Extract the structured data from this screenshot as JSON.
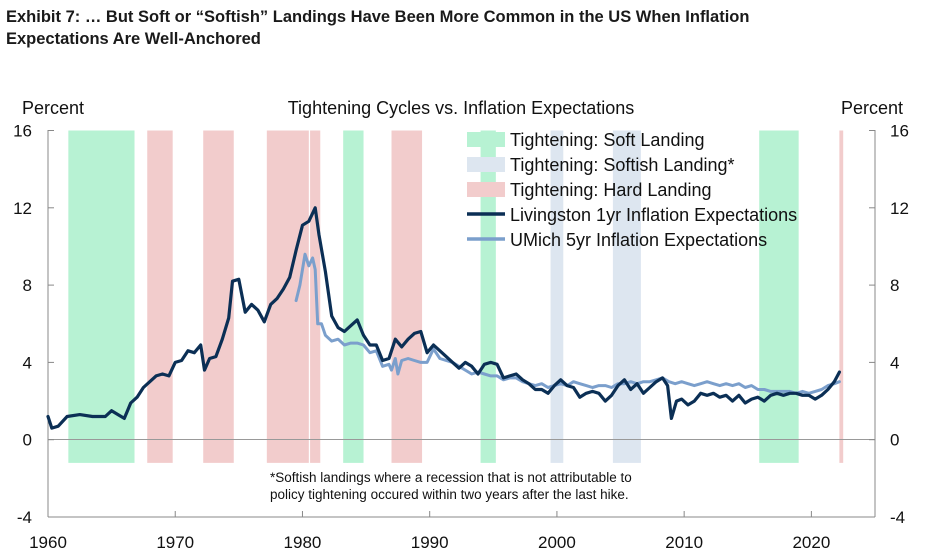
{
  "exhibit": {
    "title_line1": "Exhibit 7: … But Soft or “Softish” Landings Have Been More Common in the US When Inflation",
    "title_line2": "Expectations Are Well-Anchored"
  },
  "chart_data": {
    "type": "line",
    "title": "Tightening Cycles vs. Inflation Expectations",
    "ylabel_left": "Percent",
    "ylabel_right": "Percent",
    "xlim": [
      1960,
      2025
    ],
    "ylim": [
      -4,
      16
    ],
    "x_ticks": [
      "1960",
      "1970",
      "1980",
      "1990",
      "2000",
      "2010",
      "2020"
    ],
    "y_ticks": [
      "16",
      "12",
      "8",
      "4",
      "0",
      "-4"
    ],
    "grid": false,
    "legend_position": "top-right",
    "footnote_line1": "*Softish landings where a recession that is not attributable to",
    "footnote_line2": "policy tightening occured within two years after the last hike.",
    "shaded_categories": [
      {
        "name": "Tightening: Soft Landing",
        "color": "#b7f2d3"
      },
      {
        "name": "Tightening: Softish Landing*",
        "color": "#dde6f0"
      },
      {
        "name": "Tightening: Hard Landing",
        "color": "#f2cccc"
      }
    ],
    "regions": [
      {
        "start": 1961.6,
        "end": 1966.8,
        "kind": 0
      },
      {
        "start": 1967.8,
        "end": 1969.8,
        "kind": 2
      },
      {
        "start": 1972.2,
        "end": 1974.6,
        "kind": 2
      },
      {
        "start": 1977.2,
        "end": 1980.5,
        "kind": 2
      },
      {
        "start": 1980.6,
        "end": 1981.4,
        "kind": 2
      },
      {
        "start": 1983.2,
        "end": 1984.8,
        "kind": 0
      },
      {
        "start": 1987.0,
        "end": 1989.4,
        "kind": 2
      },
      {
        "start": 1994.0,
        "end": 1995.2,
        "kind": 0
      },
      {
        "start": 1999.5,
        "end": 2000.5,
        "kind": 1
      },
      {
        "start": 2004.4,
        "end": 2006.6,
        "kind": 1
      },
      {
        "start": 2015.9,
        "end": 2019.0,
        "kind": 0
      },
      {
        "start": 2022.2,
        "end": 2022.5,
        "kind": 2
      }
    ],
    "series": [
      {
        "name": "Livingston 1yr Inflation Expectations",
        "color": "#0b2f55",
        "points": [
          [
            1960,
            1.2
          ],
          [
            1960.3,
            0.6
          ],
          [
            1960.8,
            0.7
          ],
          [
            1961.5,
            1.2
          ],
          [
            1962.5,
            1.3
          ],
          [
            1963.5,
            1.2
          ],
          [
            1964.5,
            1.2
          ],
          [
            1965,
            1.5
          ],
          [
            1965.5,
            1.3
          ],
          [
            1966,
            1.1
          ],
          [
            1966.5,
            1.9
          ],
          [
            1967,
            2.2
          ],
          [
            1967.5,
            2.7
          ],
          [
            1968,
            3.0
          ],
          [
            1968.5,
            3.3
          ],
          [
            1969,
            3.4
          ],
          [
            1969.5,
            3.3
          ],
          [
            1970,
            4.0
          ],
          [
            1970.5,
            4.1
          ],
          [
            1971,
            4.6
          ],
          [
            1971.5,
            4.5
          ],
          [
            1972,
            4.9
          ],
          [
            1972.3,
            3.6
          ],
          [
            1972.7,
            4.2
          ],
          [
            1973.2,
            4.3
          ],
          [
            1973.7,
            5.2
          ],
          [
            1974.2,
            6.3
          ],
          [
            1974.5,
            8.2
          ],
          [
            1975,
            8.3
          ],
          [
            1975.5,
            6.6
          ],
          [
            1976,
            7.0
          ],
          [
            1976.5,
            6.7
          ],
          [
            1977,
            6.1
          ],
          [
            1977.5,
            7.0
          ],
          [
            1978,
            7.3
          ],
          [
            1978.5,
            7.8
          ],
          [
            1979,
            8.4
          ],
          [
            1979.5,
            9.8
          ],
          [
            1980,
            11.1
          ],
          [
            1980.5,
            11.3
          ],
          [
            1981,
            12.0
          ],
          [
            1981.3,
            10.6
          ],
          [
            1981.8,
            8.7
          ],
          [
            1982.3,
            6.4
          ],
          [
            1982.8,
            5.8
          ],
          [
            1983.3,
            5.6
          ],
          [
            1983.8,
            5.9
          ],
          [
            1984.3,
            6.2
          ],
          [
            1984.8,
            5.4
          ],
          [
            1985.3,
            4.9
          ],
          [
            1985.8,
            4.9
          ],
          [
            1986.3,
            4.1
          ],
          [
            1986.8,
            4.2
          ],
          [
            1987.3,
            5.2
          ],
          [
            1987.8,
            4.8
          ],
          [
            1988.3,
            5.2
          ],
          [
            1988.8,
            5.5
          ],
          [
            1989.3,
            5.6
          ],
          [
            1989.8,
            4.5
          ],
          [
            1990.3,
            4.9
          ],
          [
            1990.8,
            4.6
          ],
          [
            1991.3,
            4.3
          ],
          [
            1991.8,
            4.0
          ],
          [
            1992.3,
            3.7
          ],
          [
            1992.8,
            4.0
          ],
          [
            1993.3,
            3.8
          ],
          [
            1993.8,
            3.4
          ],
          [
            1994.3,
            3.9
          ],
          [
            1994.8,
            4.0
          ],
          [
            1995.3,
            3.9
          ],
          [
            1995.8,
            3.2
          ],
          [
            1996.3,
            3.3
          ],
          [
            1996.8,
            3.4
          ],
          [
            1997.3,
            3.1
          ],
          [
            1997.8,
            2.9
          ],
          [
            1998.3,
            2.6
          ],
          [
            1998.8,
            2.6
          ],
          [
            1999.3,
            2.4
          ],
          [
            1999.8,
            2.8
          ],
          [
            2000.3,
            3.1
          ],
          [
            2000.8,
            2.8
          ],
          [
            2001.3,
            2.7
          ],
          [
            2001.8,
            2.2
          ],
          [
            2002.3,
            2.4
          ],
          [
            2002.8,
            2.5
          ],
          [
            2003.3,
            2.4
          ],
          [
            2003.8,
            2.0
          ],
          [
            2004.3,
            2.3
          ],
          [
            2004.8,
            2.8
          ],
          [
            2005.3,
            3.1
          ],
          [
            2005.8,
            2.6
          ],
          [
            2006.3,
            2.9
          ],
          [
            2006.8,
            2.4
          ],
          [
            2007.3,
            2.7
          ],
          [
            2007.8,
            3.0
          ],
          [
            2008.3,
            3.2
          ],
          [
            2008.7,
            2.8
          ],
          [
            2009.0,
            1.1
          ],
          [
            2009.4,
            2.0
          ],
          [
            2009.8,
            2.1
          ],
          [
            2010.3,
            1.8
          ],
          [
            2010.8,
            2.0
          ],
          [
            2011.3,
            2.4
          ],
          [
            2011.8,
            2.3
          ],
          [
            2012.3,
            2.4
          ],
          [
            2012.8,
            2.2
          ],
          [
            2013.3,
            2.3
          ],
          [
            2013.8,
            2.0
          ],
          [
            2014.3,
            2.3
          ],
          [
            2014.8,
            1.9
          ],
          [
            2015.3,
            2.1
          ],
          [
            2015.8,
            2.2
          ],
          [
            2016.3,
            2.0
          ],
          [
            2016.8,
            2.3
          ],
          [
            2017.3,
            2.4
          ],
          [
            2017.8,
            2.3
          ],
          [
            2018.3,
            2.4
          ],
          [
            2018.8,
            2.4
          ],
          [
            2019.3,
            2.3
          ],
          [
            2019.8,
            2.3
          ],
          [
            2020.3,
            2.1
          ],
          [
            2020.8,
            2.3
          ],
          [
            2021.3,
            2.6
          ],
          [
            2021.8,
            3.0
          ],
          [
            2022.2,
            3.5
          ]
        ]
      },
      {
        "name": "UMich 5yr Inflation Expectations",
        "color": "#7b9fcc",
        "points": [
          [
            1979.5,
            7.2
          ],
          [
            1979.8,
            8.0
          ],
          [
            1980.2,
            9.6
          ],
          [
            1980.5,
            9.0
          ],
          [
            1980.8,
            9.4
          ],
          [
            1981.0,
            8.8
          ],
          [
            1981.2,
            6.0
          ],
          [
            1981.5,
            6.0
          ],
          [
            1981.8,
            5.4
          ],
          [
            1982.3,
            5.1
          ],
          [
            1982.8,
            5.2
          ],
          [
            1983.3,
            4.9
          ],
          [
            1983.8,
            5.0
          ],
          [
            1984.3,
            5.0
          ],
          [
            1984.8,
            4.9
          ],
          [
            1985.3,
            4.5
          ],
          [
            1985.8,
            4.6
          ],
          [
            1986.3,
            3.8
          ],
          [
            1986.8,
            3.9
          ],
          [
            1987.0,
            3.6
          ],
          [
            1987.3,
            4.2
          ],
          [
            1987.5,
            3.4
          ],
          [
            1987.8,
            4.1
          ],
          [
            1988.3,
            4.2
          ],
          [
            1988.8,
            4.1
          ],
          [
            1989.3,
            4.0
          ],
          [
            1989.8,
            4.0
          ],
          [
            1990.3,
            4.7
          ],
          [
            1990.8,
            4.2
          ],
          [
            1991.3,
            4.1
          ],
          [
            1991.8,
            4.0
          ],
          [
            1992.3,
            3.8
          ],
          [
            1992.8,
            3.6
          ],
          [
            1993.3,
            3.4
          ],
          [
            1993.8,
            3.5
          ],
          [
            1994.3,
            3.4
          ],
          [
            1994.8,
            3.3
          ],
          [
            1995.3,
            3.3
          ],
          [
            1995.8,
            3.1
          ],
          [
            1996.3,
            3.2
          ],
          [
            1996.8,
            3.2
          ],
          [
            1997.3,
            3.0
          ],
          [
            1997.8,
            2.9
          ],
          [
            1998.3,
            2.8
          ],
          [
            1998.8,
            2.9
          ],
          [
            1999.3,
            2.7
          ],
          [
            1999.8,
            2.8
          ],
          [
            2000.3,
            2.9
          ],
          [
            2000.8,
            2.8
          ],
          [
            2001.3,
            3.0
          ],
          [
            2001.8,
            2.9
          ],
          [
            2002.3,
            2.8
          ],
          [
            2002.8,
            2.7
          ],
          [
            2003.3,
            2.8
          ],
          [
            2003.8,
            2.8
          ],
          [
            2004.3,
            2.7
          ],
          [
            2004.8,
            2.9
          ],
          [
            2005.3,
            2.9
          ],
          [
            2005.8,
            3.0
          ],
          [
            2006.3,
            2.9
          ],
          [
            2006.8,
            3.0
          ],
          [
            2007.3,
            3.0
          ],
          [
            2007.8,
            3.1
          ],
          [
            2008.3,
            3.2
          ],
          [
            2008.8,
            3.0
          ],
          [
            2009.3,
            2.9
          ],
          [
            2009.8,
            3.0
          ],
          [
            2010.3,
            2.9
          ],
          [
            2010.8,
            2.8
          ],
          [
            2011.3,
            2.9
          ],
          [
            2011.8,
            3.0
          ],
          [
            2012.3,
            2.9
          ],
          [
            2012.8,
            2.8
          ],
          [
            2013.3,
            2.9
          ],
          [
            2013.8,
            2.8
          ],
          [
            2014.3,
            2.9
          ],
          [
            2014.8,
            2.7
          ],
          [
            2015.3,
            2.8
          ],
          [
            2015.8,
            2.6
          ],
          [
            2016.3,
            2.6
          ],
          [
            2016.8,
            2.5
          ],
          [
            2017.3,
            2.5
          ],
          [
            2017.8,
            2.5
          ],
          [
            2018.3,
            2.5
          ],
          [
            2018.8,
            2.4
          ],
          [
            2019.3,
            2.5
          ],
          [
            2019.8,
            2.4
          ],
          [
            2020.3,
            2.5
          ],
          [
            2020.8,
            2.6
          ],
          [
            2021.3,
            2.8
          ],
          [
            2021.8,
            2.9
          ],
          [
            2022.2,
            3.0
          ]
        ]
      }
    ]
  }
}
